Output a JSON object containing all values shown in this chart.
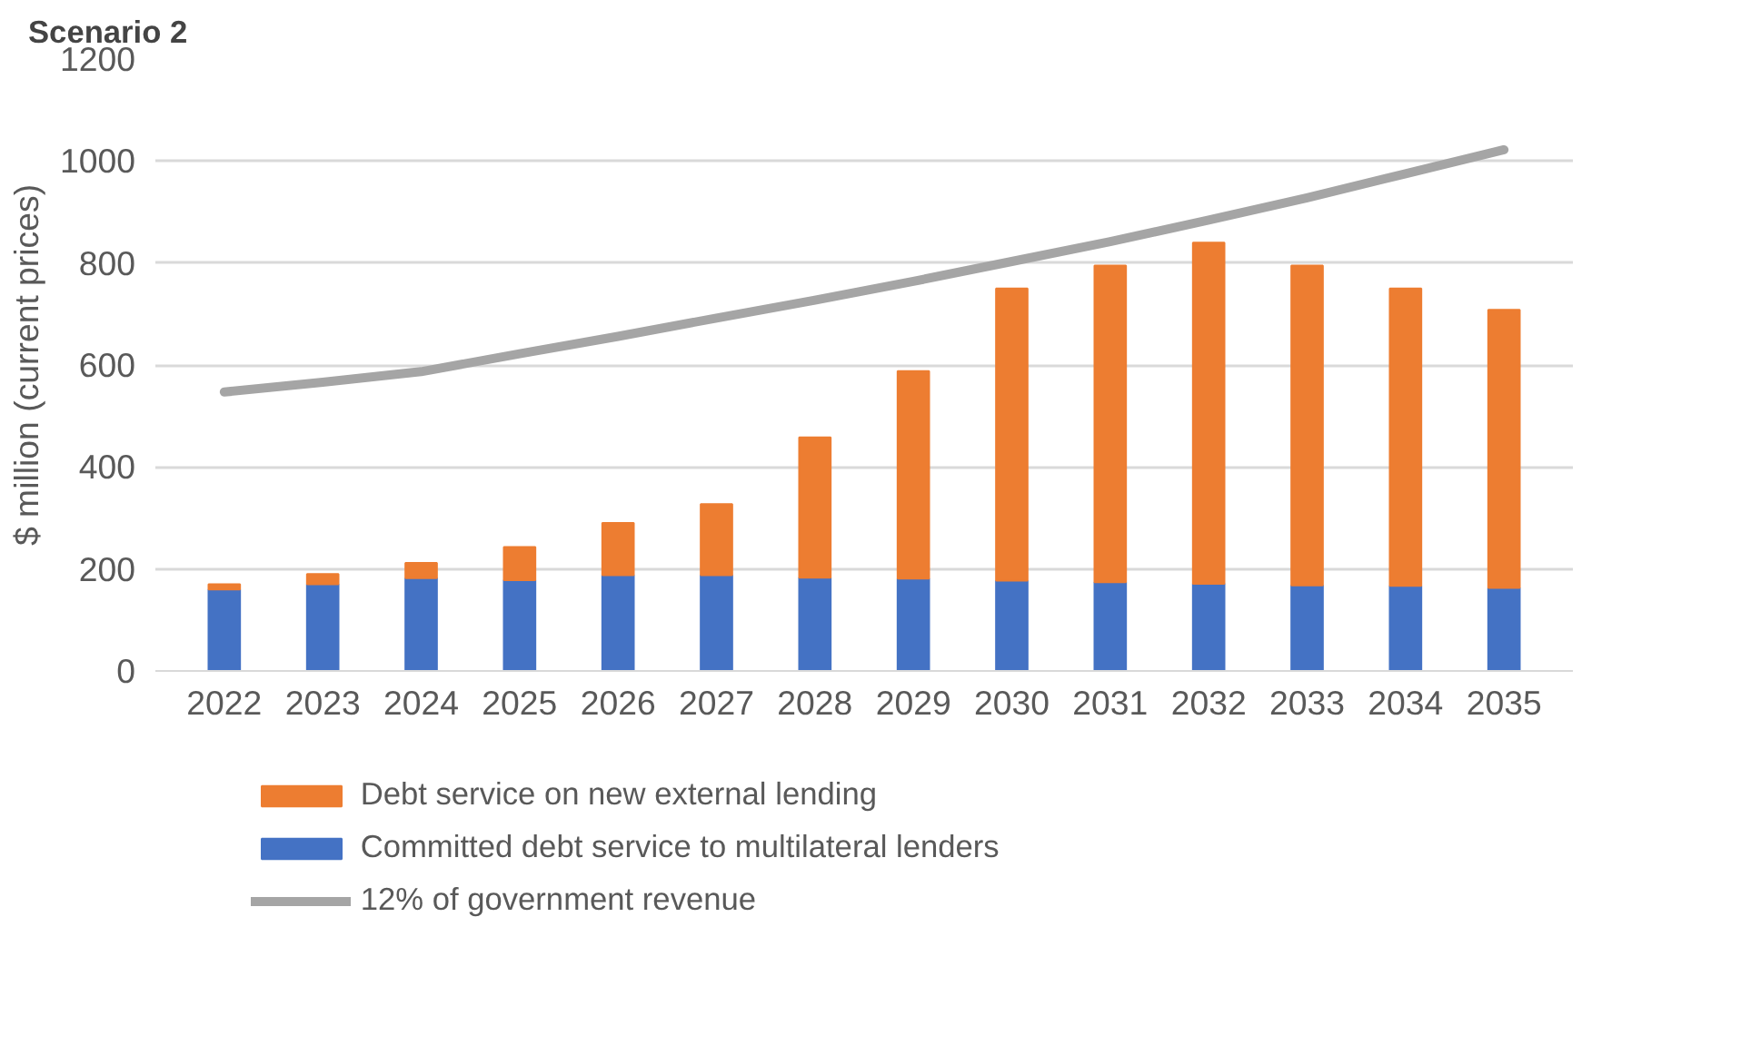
{
  "chart_data": {
    "type": "bar",
    "title": "Scenario 2",
    "ylabel": "$ million (current prices)",
    "categories": [
      "2022",
      "2023",
      "2024",
      "2025",
      "2026",
      "2027",
      "2028",
      "2029",
      "2030",
      "2031",
      "2032",
      "2033",
      "2034",
      "2035"
    ],
    "stacked": true,
    "series": [
      {
        "name": "Committed debt service to multilateral lenders",
        "color": "#4472c4",
        "values": [
          160,
          170,
          182,
          178,
          188,
          188,
          183,
          181,
          177,
          174,
          171,
          168,
          167,
          163
        ]
      },
      {
        "name": "Debt service on new external lending",
        "color": "#ed7d31",
        "values": [
          10,
          20,
          30,
          65,
          102,
          139,
          275,
          407,
          573,
          621,
          669,
          627,
          583,
          545
        ]
      },
      {
        "name": "12% of government revenue",
        "type": "line",
        "color": "#a5a5a5",
        "values": [
          547,
          566,
          587,
          622,
          656,
          692,
          727,
          764,
          803,
          842,
          884,
          928,
          975,
          1022
        ]
      }
    ],
    "ylim": [
      0,
      1200
    ],
    "yticks": [
      0,
      200,
      400,
      600,
      800,
      1000,
      1200
    ],
    "grid": "y",
    "legend": "bottom"
  }
}
